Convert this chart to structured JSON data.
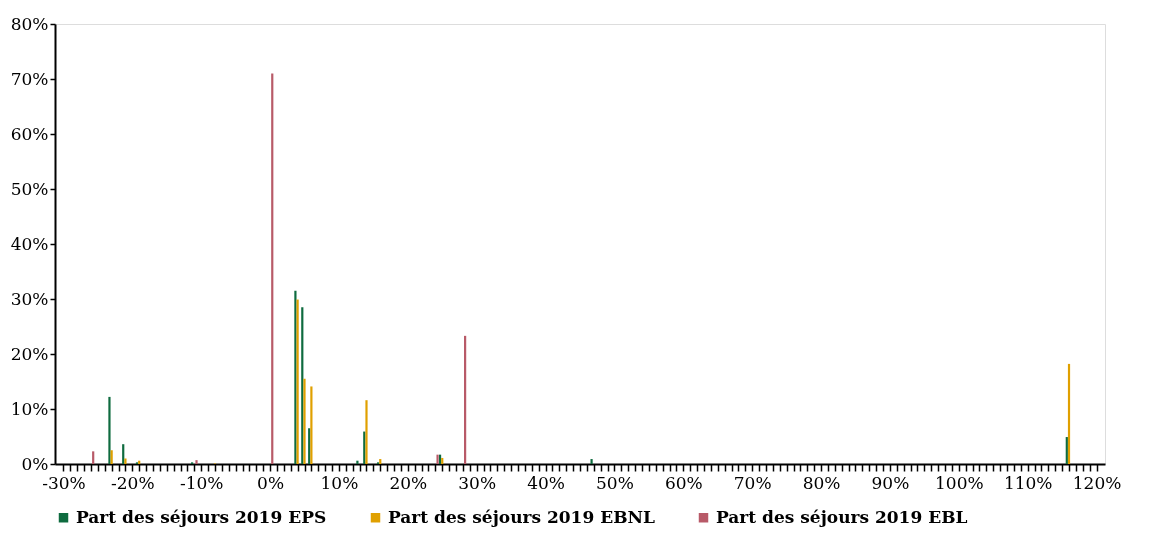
{
  "chart_data": {
    "type": "bar",
    "x": [
      -26,
      -23,
      -21,
      -19,
      -11,
      -8,
      0,
      4,
      5,
      6,
      13,
      14,
      16,
      24,
      25,
      28,
      47,
      116
    ],
    "series": [
      {
        "name": "Part des séjours 2019 EPS",
        "color": "#0e6b3f",
        "values": [
          null,
          12.2,
          3.6,
          0.3,
          0.3,
          null,
          null,
          31.5,
          28.5,
          6.5,
          0.6,
          5.9,
          0.3,
          null,
          1.7,
          null,
          0.9,
          4.9
        ]
      },
      {
        "name": "Part des séjours 2019 EBNL",
        "color": "#e0a000",
        "values": [
          null,
          2.5,
          1.0,
          0.6,
          null,
          0.1,
          null,
          29.9,
          15.5,
          14.1,
          null,
          11.6,
          0.9,
          null,
          1.1,
          null,
          null,
          18.2
        ]
      },
      {
        "name": "Part des séjours 2019 EBL",
        "color": "#b85a68",
        "values": [
          2.3,
          null,
          null,
          null,
          0.7,
          null,
          71,
          null,
          null,
          null,
          null,
          null,
          null,
          1.7,
          null,
          23.3,
          null,
          null
        ]
      }
    ],
    "xlim": [
      -30.5,
      120.5
    ],
    "xticks": [
      {
        "value": -30,
        "label": "-30%"
      },
      {
        "value": -29,
        "label": null
      },
      {
        "value": -28,
        "label": null
      },
      {
        "value": -27,
        "label": null
      },
      {
        "value": -26,
        "label": null
      },
      {
        "value": -25,
        "label": null
      },
      {
        "value": -24,
        "label": null
      },
      {
        "value": -23,
        "label": null
      },
      {
        "value": -22,
        "label": null
      },
      {
        "value": -21,
        "label": null
      },
      {
        "value": -20,
        "label": "-20%"
      },
      {
        "value": -19,
        "label": null
      },
      {
        "value": -18,
        "label": null
      },
      {
        "value": -17,
        "label": null
      },
      {
        "value": -16,
        "label": null
      },
      {
        "value": -15,
        "label": null
      },
      {
        "value": -14,
        "label": null
      },
      {
        "value": -13,
        "label": null
      },
      {
        "value": -12,
        "label": null
      },
      {
        "value": -11,
        "label": null
      },
      {
        "value": -10,
        "label": "-10%"
      },
      {
        "value": -9,
        "label": null
      },
      {
        "value": -8,
        "label": null
      },
      {
        "value": -7,
        "label": null
      },
      {
        "value": -6,
        "label": null
      },
      {
        "value": -5,
        "label": null
      },
      {
        "value": -4,
        "label": null
      },
      {
        "value": -3,
        "label": null
      },
      {
        "value": -2,
        "label": null
      },
      {
        "value": -1,
        "label": null
      },
      {
        "value": 0,
        "label": "0%"
      },
      {
        "value": 1,
        "label": null
      },
      {
        "value": 2,
        "label": null
      },
      {
        "value": 3,
        "label": null
      },
      {
        "value": 4,
        "label": null
      },
      {
        "value": 5,
        "label": null
      },
      {
        "value": 6,
        "label": null
      },
      {
        "value": 7,
        "label": null
      },
      {
        "value": 8,
        "label": null
      },
      {
        "value": 9,
        "label": null
      },
      {
        "value": 10,
        "label": "10%"
      },
      {
        "value": 11,
        "label": null
      },
      {
        "value": 12,
        "label": null
      },
      {
        "value": 13,
        "label": null
      },
      {
        "value": 14,
        "label": null
      },
      {
        "value": 15,
        "label": null
      },
      {
        "value": 16,
        "label": null
      },
      {
        "value": 17,
        "label": null
      },
      {
        "value": 18,
        "label": null
      },
      {
        "value": 19,
        "label": null
      },
      {
        "value": 20,
        "label": "20%"
      },
      {
        "value": 21,
        "label": null
      },
      {
        "value": 22,
        "label": null
      },
      {
        "value": 23,
        "label": null
      },
      {
        "value": 24,
        "label": null
      },
      {
        "value": 25,
        "label": null
      },
      {
        "value": 26,
        "label": null
      },
      {
        "value": 27,
        "label": null
      },
      {
        "value": 28,
        "label": null
      },
      {
        "value": 29,
        "label": null
      },
      {
        "value": 30,
        "label": "30%"
      },
      {
        "value": 31,
        "label": null
      },
      {
        "value": 32,
        "label": null
      },
      {
        "value": 33,
        "label": null
      },
      {
        "value": 34,
        "label": null
      },
      {
        "value": 35,
        "label": null
      },
      {
        "value": 36,
        "label": null
      },
      {
        "value": 37,
        "label": null
      },
      {
        "value": 38,
        "label": null
      },
      {
        "value": 39,
        "label": null
      },
      {
        "value": 40,
        "label": "40%"
      },
      {
        "value": 41,
        "label": null
      },
      {
        "value": 42,
        "label": null
      },
      {
        "value": 43,
        "label": null
      },
      {
        "value": 44,
        "label": null
      },
      {
        "value": 45,
        "label": null
      },
      {
        "value": 46,
        "label": null
      },
      {
        "value": 47,
        "label": null
      },
      {
        "value": 48,
        "label": null
      },
      {
        "value": 49,
        "label": null
      },
      {
        "value": 50,
        "label": "50%"
      },
      {
        "value": 51,
        "label": null
      },
      {
        "value": 52,
        "label": null
      },
      {
        "value": 53,
        "label": null
      },
      {
        "value": 54,
        "label": null
      },
      {
        "value": 55,
        "label": null
      },
      {
        "value": 56,
        "label": null
      },
      {
        "value": 57,
        "label": null
      },
      {
        "value": 58,
        "label": null
      },
      {
        "value": 59,
        "label": null
      },
      {
        "value": 60,
        "label": "60%"
      },
      {
        "value": 61,
        "label": null
      },
      {
        "value": 62,
        "label": null
      },
      {
        "value": 63,
        "label": null
      },
      {
        "value": 64,
        "label": null
      },
      {
        "value": 65,
        "label": null
      },
      {
        "value": 66,
        "label": null
      },
      {
        "value": 67,
        "label": null
      },
      {
        "value": 68,
        "label": null
      },
      {
        "value": 69,
        "label": null
      },
      {
        "value": 70,
        "label": "70%"
      },
      {
        "value": 71,
        "label": null
      },
      {
        "value": 72,
        "label": null
      },
      {
        "value": 73,
        "label": null
      },
      {
        "value": 74,
        "label": null
      },
      {
        "value": 75,
        "label": null
      },
      {
        "value": 76,
        "label": null
      },
      {
        "value": 77,
        "label": null
      },
      {
        "value": 78,
        "label": null
      },
      {
        "value": 79,
        "label": null
      },
      {
        "value": 80,
        "label": "80%"
      },
      {
        "value": 81,
        "label": null
      },
      {
        "value": 82,
        "label": null
      },
      {
        "value": 83,
        "label": null
      },
      {
        "value": 84,
        "label": null
      },
      {
        "value": 85,
        "label": null
      },
      {
        "value": 86,
        "label": null
      },
      {
        "value": 87,
        "label": null
      },
      {
        "value": 88,
        "label": null
      },
      {
        "value": 89,
        "label": null
      },
      {
        "value": 90,
        "label": "90%"
      },
      {
        "value": 91,
        "label": null
      },
      {
        "value": 92,
        "label": null
      },
      {
        "value": 93,
        "label": null
      },
      {
        "value": 94,
        "label": null
      },
      {
        "value": 95,
        "label": null
      },
      {
        "value": 96,
        "label": null
      },
      {
        "value": 97,
        "label": null
      },
      {
        "value": 98,
        "label": null
      },
      {
        "value": 99,
        "label": null
      },
      {
        "value": 100,
        "label": "100%"
      },
      {
        "value": 101,
        "label": null
      },
      {
        "value": 102,
        "label": null
      },
      {
        "value": 103,
        "label": null
      },
      {
        "value": 104,
        "label": null
      },
      {
        "value": 105,
        "label": null
      },
      {
        "value": 106,
        "label": null
      },
      {
        "value": 107,
        "label": null
      },
      {
        "value": 108,
        "label": null
      },
      {
        "value": 109,
        "label": null
      },
      {
        "value": 110,
        "label": "110%"
      },
      {
        "value": 111,
        "label": null
      },
      {
        "value": 112,
        "label": null
      },
      {
        "value": 113,
        "label": null
      },
      {
        "value": 114,
        "label": null
      },
      {
        "value": 115,
        "label": null
      },
      {
        "value": 116,
        "label": null
      },
      {
        "value": 117,
        "label": null
      },
      {
        "value": 118,
        "label": null
      },
      {
        "value": 119,
        "label": null
      },
      {
        "value": 120,
        "label": "120%"
      }
    ],
    "ylim": [
      0,
      80
    ],
    "yticks": [
      {
        "value": 0,
        "label": "0%"
      },
      {
        "value": 10,
        "label": "10%"
      },
      {
        "value": 20,
        "label": "20%"
      },
      {
        "value": 30,
        "label": "30%"
      },
      {
        "value": 40,
        "label": "40%"
      },
      {
        "value": 50,
        "label": "50%"
      },
      {
        "value": 60,
        "label": "60%"
      },
      {
        "value": 70,
        "label": "70%"
      },
      {
        "value": 80,
        "label": "80%"
      }
    ],
    "grid": false,
    "legend": "bottom"
  }
}
